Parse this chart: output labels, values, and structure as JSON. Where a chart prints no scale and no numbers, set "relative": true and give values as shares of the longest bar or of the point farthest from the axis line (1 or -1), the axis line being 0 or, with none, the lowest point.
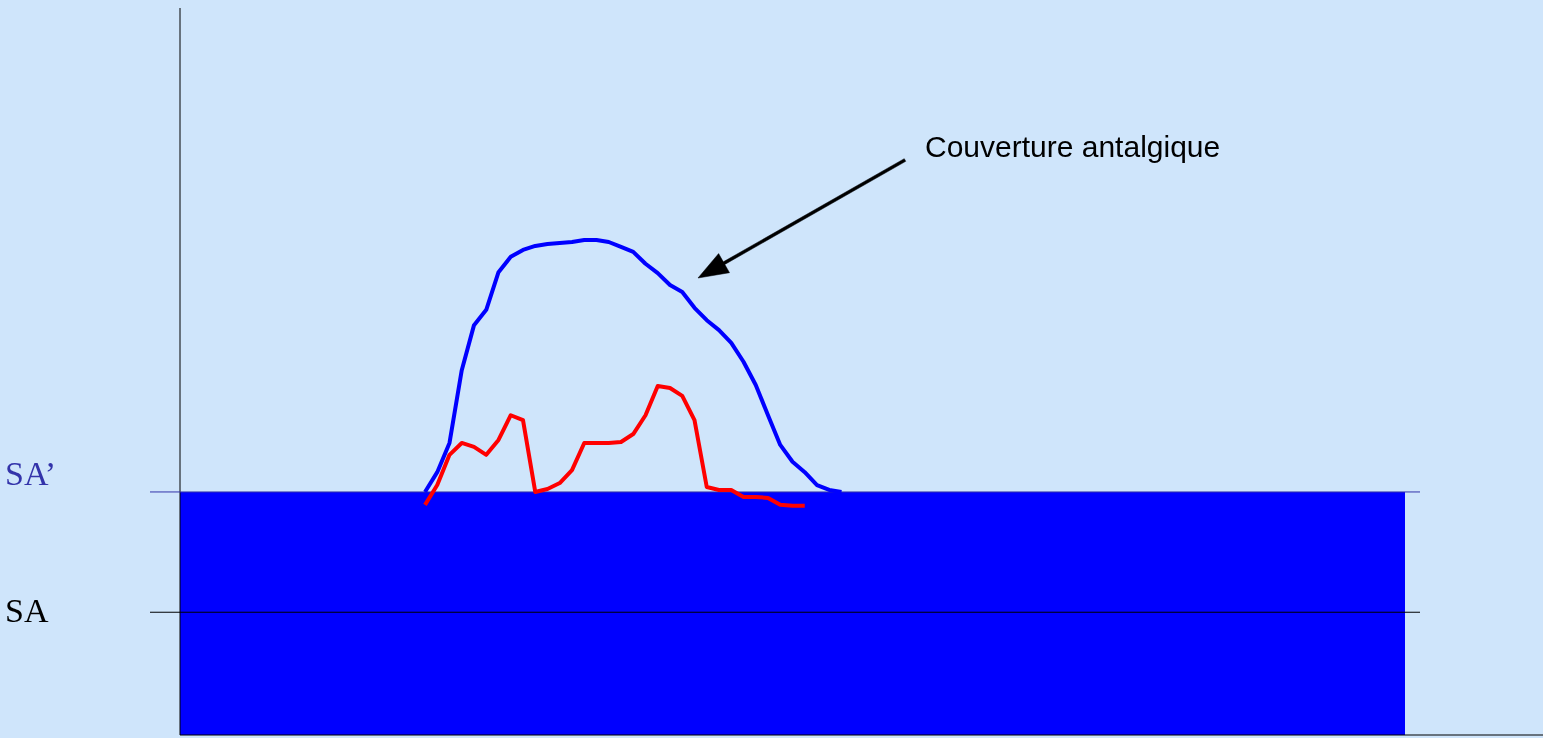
{
  "chart_data": {
    "type": "line",
    "relative": true,
    "line_style": "solid",
    "categories": [
      null,
      null,
      null,
      null,
      null,
      null,
      null,
      null,
      null,
      null,
      null,
      null,
      null,
      null,
      null,
      null,
      null,
      null,
      null,
      null,
      null,
      null,
      null,
      null,
      null,
      null,
      null,
      null,
      null,
      null,
      null,
      null,
      null,
      null,
      null,
      null,
      null,
      null,
      null,
      null,
      null,
      null,
      null,
      null,
      null,
      null,
      null,
      null,
      null,
      null,
      null,
      null,
      null,
      null,
      null,
      null,
      null,
      null,
      null,
      null,
      null,
      null,
      null,
      null,
      null,
      null,
      null,
      null,
      null,
      null,
      null,
      null,
      null,
      null,
      null,
      null,
      null,
      null,
      null,
      null,
      null,
      null,
      null,
      null,
      null,
      null,
      null,
      null,
      null,
      null,
      null,
      null,
      null,
      null,
      null,
      null,
      null,
      null,
      null,
      null,
      null
    ],
    "series": [
      {
        "color": "#0000ff",
        "values": [
          null,
          null,
          null,
          null,
          null,
          null,
          null,
          null,
          null,
          null,
          null,
          null,
          null,
          null,
          null,
          null,
          null,
          null,
          null,
          null,
          0.491,
          0.531,
          0.59,
          0.737,
          0.828,
          0.859,
          0.935,
          0.966,
          0.98,
          0.988,
          0.992,
          0.994,
          0.996,
          1.0,
          1.0,
          0.996,
          0.986,
          0.976,
          0.952,
          0.933,
          0.909,
          0.895,
          0.863,
          0.838,
          0.818,
          0.792,
          0.754,
          0.707,
          0.646,
          0.586,
          0.552,
          0.531,
          0.505,
          0.495,
          0.491,
          null,
          null,
          null,
          null,
          null,
          null,
          null,
          null,
          null,
          null,
          null,
          null,
          null,
          null,
          null,
          null,
          null,
          null,
          null,
          null,
          null,
          null,
          null,
          null,
          null,
          null,
          null,
          null,
          null,
          null,
          null,
          null,
          null,
          null,
          null,
          null,
          null,
          null,
          null,
          null,
          null,
          null,
          null,
          null,
          null,
          null
        ]
      },
      {
        "color": "#ff0000",
        "values": [
          null,
          null,
          null,
          null,
          null,
          null,
          null,
          null,
          null,
          null,
          null,
          null,
          null,
          null,
          null,
          null,
          null,
          null,
          null,
          null,
          0.465,
          0.505,
          0.566,
          0.59,
          0.582,
          0.566,
          0.596,
          0.646,
          0.636,
          0.491,
          0.497,
          0.509,
          0.535,
          0.59,
          0.59,
          0.59,
          0.592,
          0.608,
          0.646,
          0.705,
          0.701,
          0.685,
          0.636,
          0.501,
          0.495,
          0.495,
          0.481,
          0.481,
          0.479,
          0.465,
          0.463,
          0.463,
          null,
          null,
          null,
          null,
          null,
          null,
          null,
          null,
          null,
          null,
          null,
          null,
          null,
          null,
          null,
          null,
          null,
          null,
          null,
          null,
          null,
          null,
          null,
          null,
          null,
          null,
          null,
          null,
          null,
          null,
          null,
          null,
          null,
          null,
          null,
          null,
          null,
          null,
          null,
          null,
          null,
          null,
          null,
          null,
          null,
          null,
          null,
          null,
          null
        ]
      }
    ],
    "bands": [
      {
        "axis": "y",
        "from": 0,
        "to": 0.491,
        "color": "#0000ff"
      }
    ],
    "ref_lines": [
      {
        "axis": "y",
        "value": 0.491,
        "label": "SA’",
        "color": "#3333aa"
      },
      {
        "axis": "y",
        "value": 0.248,
        "label": "SA",
        "color": "#000000"
      }
    ],
    "annotations": [
      "Couverture antalgique"
    ]
  }
}
